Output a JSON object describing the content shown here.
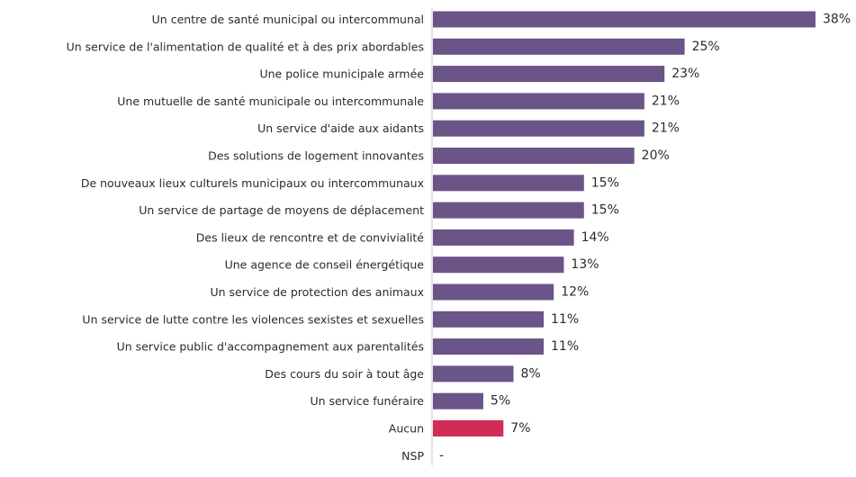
{
  "chart_data": {
    "type": "bar",
    "orientation": "horizontal",
    "title": "",
    "xlabel": "",
    "ylabel": "",
    "xlim": [
      0,
      38
    ],
    "grid": false,
    "legend": "none",
    "categories": [
      "Un centre de santé municipal ou intercommunal",
      "Un service de l'alimentation de qualité et à des prix abordables",
      "Une police municipale armée",
      "Une mutuelle de santé municipale ou intercommunale",
      "Un service d'aide aux aidants",
      "Des solutions de logement innovantes",
      "De nouveaux lieux culturels municipaux ou intercommunaux",
      "Un service de partage de moyens de déplacement",
      "Des lieux de rencontre et de convivialité",
      "Une agence de conseil énergétique",
      "Un service de protection des animaux",
      "Un service de lutte contre les violences sexistes et sexuelles",
      "Un service public d'accompagnement aux parentalités",
      "Des cours du soir à tout âge",
      "Un service funéraire",
      "Aucun",
      "NSP"
    ],
    "values": [
      38,
      25,
      23,
      21,
      21,
      20,
      15,
      15,
      14,
      13,
      12,
      11,
      11,
      8,
      5,
      7,
      null
    ],
    "value_labels": [
      "38%",
      "25%",
      "23%",
      "21%",
      "21%",
      "20%",
      "15%",
      "15%",
      "14%",
      "13%",
      "12%",
      "11%",
      "11%",
      "8%",
      "5%",
      "7%",
      "-"
    ],
    "colors": {
      "default": "#6b5488",
      "highlight": "#cf2d57",
      "axis": "#c8c8c8"
    },
    "highlight_category": "Aucun"
  }
}
